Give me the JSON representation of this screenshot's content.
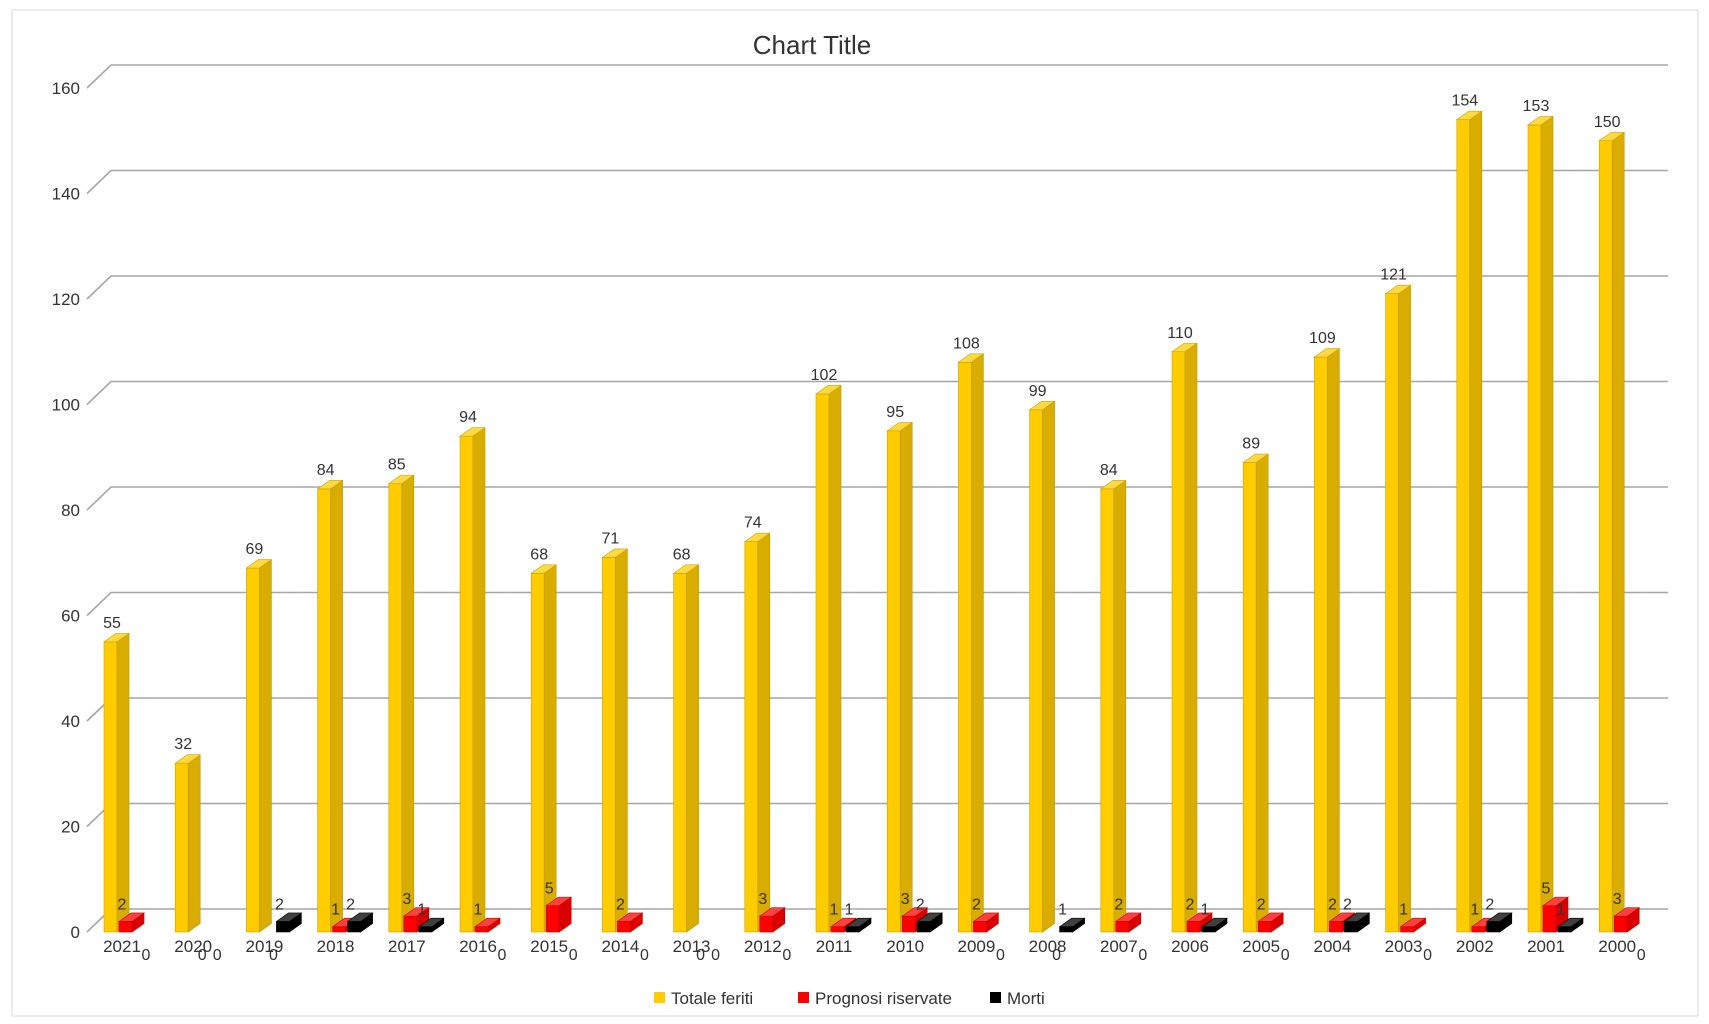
{
  "chart_data": {
    "type": "bar",
    "title": "Chart Title",
    "xlabel": "",
    "ylabel": "",
    "ylim": [
      0,
      160
    ],
    "yticks": [
      0,
      20,
      40,
      60,
      80,
      100,
      120,
      140,
      160
    ],
    "grid": true,
    "legend_position": "bottom",
    "categories": [
      "2021",
      "2020",
      "2019",
      "2018",
      "2017",
      "2016",
      "2015",
      "2014",
      "2013",
      "2012",
      "2011",
      "2010",
      "2009",
      "2008",
      "2007",
      "2006",
      "2005",
      "2004",
      "2003",
      "2002",
      "2001",
      "2000"
    ],
    "series": [
      {
        "name": "Totale feriti",
        "color": "#FFCC00",
        "values": [
          55,
          32,
          69,
          84,
          85,
          94,
          68,
          71,
          68,
          74,
          102,
          95,
          108,
          99,
          84,
          110,
          89,
          109,
          121,
          154,
          153,
          150
        ]
      },
      {
        "name": "Prognosi riservate",
        "color": "#FF0000",
        "values": [
          2,
          0,
          0,
          1,
          3,
          1,
          5,
          2,
          0,
          3,
          1,
          3,
          2,
          0,
          2,
          2,
          2,
          2,
          1,
          1,
          5,
          3
        ]
      },
      {
        "name": "Morti",
        "color": "#000000",
        "values": [
          0,
          0,
          2,
          2,
          1,
          0,
          0,
          0,
          0,
          0,
          1,
          2,
          0,
          1,
          0,
          1,
          0,
          2,
          0,
          2,
          1,
          0
        ]
      }
    ]
  }
}
